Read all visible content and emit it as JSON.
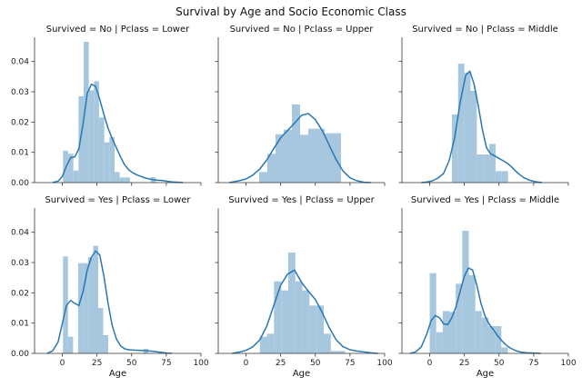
{
  "chart_data": {
    "type": "histogram",
    "title": "Survival by Age and Socio Economic Class",
    "xlabel": "Age",
    "ylabel": "",
    "xlim": [
      -20,
      100
    ],
    "ylim": [
      0,
      0.048
    ],
    "xticks": [
      0,
      25,
      50,
      75,
      100
    ],
    "yticks": [
      0.0,
      0.01,
      0.02,
      0.03,
      0.04
    ],
    "ytick_labels": [
      "0.00",
      "0.01",
      "0.02",
      "0.03",
      "0.04"
    ],
    "layout": {
      "rows": 2,
      "cols": 3,
      "sharex": true,
      "sharey": true,
      "grid": false
    },
    "colors": {
      "bar": "#a7c7df",
      "kde": "#2a77b2",
      "axis": "#333333"
    },
    "panels": [
      {
        "title": "Survived = No | Pclass = Lower",
        "bin_edges": [
          0.5,
          4.2,
          8.0,
          11.7,
          15.4,
          19.1,
          22.8,
          26.5,
          30.3,
          34.0,
          37.7,
          41.4,
          45.1,
          48.8,
          52.5,
          56.2,
          60.0,
          63.7,
          67.4,
          71.1,
          74.8
        ],
        "density": [
          0.0105,
          0.0095,
          0.004,
          0.0285,
          0.0465,
          0.0305,
          0.0335,
          0.0215,
          0.0133,
          0.015,
          0.0035,
          0.0017,
          0.0017,
          0.0,
          0.0,
          0.0,
          0.0,
          0.0018,
          0.0,
          0.0
        ],
        "kde": {
          "x": [
            -7,
            -3,
            0,
            3,
            6,
            9,
            12,
            15,
            18,
            21,
            24,
            27,
            30,
            33,
            36,
            39,
            42,
            45,
            48,
            51,
            54,
            57,
            60,
            63,
            66,
            69,
            72,
            76,
            80,
            84,
            87
          ],
          "y": [
            0.0,
            0.0005,
            0.002,
            0.0055,
            0.0082,
            0.0085,
            0.0112,
            0.0195,
            0.0295,
            0.0325,
            0.0318,
            0.0275,
            0.0225,
            0.018,
            0.0145,
            0.0115,
            0.0085,
            0.0058,
            0.0042,
            0.0032,
            0.0025,
            0.002,
            0.0015,
            0.0012,
            0.0009,
            0.0008,
            0.0007,
            0.0004,
            0.0002,
            0.0001,
            0.0
          ]
        }
      },
      {
        "title": "Survived = No | Pclass = Upper",
        "bin_edges": [
          9.5,
          15.4,
          21.3,
          27.2,
          33.1,
          39.0,
          44.9,
          50.8,
          56.7,
          62.6,
          68.5,
          74.4
        ],
        "density": [
          0.0035,
          0.0095,
          0.016,
          0.0175,
          0.0258,
          0.0158,
          0.0178,
          0.0178,
          0.0163,
          0.0163,
          0.0
        ],
        "kde": {
          "x": [
            -12,
            -5,
            0,
            5,
            10,
            15,
            20,
            25,
            30,
            35,
            40,
            45,
            50,
            55,
            60,
            65,
            70,
            75,
            80,
            85,
            90
          ],
          "y": [
            0.0,
            0.0006,
            0.0012,
            0.0025,
            0.0045,
            0.0075,
            0.0112,
            0.0148,
            0.0172,
            0.0196,
            0.0222,
            0.0228,
            0.0208,
            0.0172,
            0.0124,
            0.0076,
            0.0038,
            0.0016,
            0.0006,
            0.0001,
            0.0
          ]
        }
      },
      {
        "title": "Survived = No | Pclass = Middle",
        "bin_edges": [
          16.0,
          20.5,
          25.0,
          29.5,
          34.0,
          38.5,
          43.0,
          47.5,
          52.0,
          56.5,
          61.0,
          65.5,
          70.0
        ],
        "density": [
          0.0225,
          0.0393,
          0.0363,
          0.0303,
          0.0093,
          0.0093,
          0.0128,
          0.0038,
          0.0038,
          0.0,
          0.0,
          0.0
        ],
        "kde": {
          "x": [
            -6,
            -2,
            2,
            6,
            10,
            14,
            18,
            22,
            26,
            29,
            32,
            35,
            38,
            41,
            44,
            47,
            50,
            53,
            56,
            59,
            62,
            65,
            68,
            72,
            76,
            81
          ],
          "y": [
            0.0,
            0.0002,
            0.0006,
            0.0015,
            0.003,
            0.0072,
            0.0148,
            0.0265,
            0.0355,
            0.0368,
            0.0325,
            0.0255,
            0.0175,
            0.0115,
            0.0095,
            0.0088,
            0.008,
            0.0072,
            0.0064,
            0.0052,
            0.0038,
            0.0026,
            0.0016,
            0.0008,
            0.0003,
            0.0
          ]
        }
      },
      {
        "title": "Survived = Yes | Pclass = Lower",
        "bin_edges": [
          0.5,
          4.1,
          7.8,
          11.4,
          15.0,
          18.6,
          22.3,
          25.9,
          29.5,
          33.1,
          36.8,
          40.4,
          44.0,
          47.6,
          51.3,
          54.9,
          58.5,
          62.1,
          65.8,
          69.4,
          73.0
        ],
        "density": [
          0.032,
          0.0055,
          0.0,
          0.0298,
          0.0298,
          0.0318,
          0.0355,
          0.015,
          0.006,
          0.0,
          0.0,
          0.0,
          0.0,
          0.0,
          0.0,
          0.0,
          0.0015,
          0.0,
          0.0,
          0.0
        ],
        "kde": {
          "x": [
            -11,
            -7,
            -3,
            0,
            3,
            6,
            9,
            12,
            15,
            18,
            21,
            24,
            27,
            30,
            33,
            36,
            39,
            42,
            45,
            48,
            51,
            55,
            60,
            65,
            70,
            75,
            79
          ],
          "y": [
            0.0,
            0.0008,
            0.0038,
            0.0098,
            0.0158,
            0.0175,
            0.0165,
            0.0158,
            0.0205,
            0.0275,
            0.0318,
            0.0338,
            0.0325,
            0.0255,
            0.0165,
            0.0092,
            0.0048,
            0.0025,
            0.0015,
            0.0012,
            0.0011,
            0.001,
            0.0009,
            0.0007,
            0.0004,
            0.0001,
            0.0
          ]
        }
      },
      {
        "title": "Survived = Yes | Pclass = Upper",
        "bin_edges": [
          10.0,
          15.1,
          20.2,
          25.4,
          30.5,
          35.6,
          40.7,
          45.8,
          51.0,
          56.1,
          61.2,
          66.3,
          71.4,
          76.5
        ],
        "density": [
          0.0055,
          0.0065,
          0.0238,
          0.0208,
          0.0333,
          0.0238,
          0.0208,
          0.0158,
          0.0158,
          0.0065,
          0.0008,
          0.0008,
          0.0
        ],
        "kde": {
          "x": [
            -10,
            -5,
            0,
            5,
            10,
            15,
            20,
            25,
            30,
            35,
            40,
            45,
            50,
            55,
            60,
            65,
            70,
            75,
            80,
            85,
            90,
            95
          ],
          "y": [
            0.0,
            0.0004,
            0.001,
            0.0022,
            0.0045,
            0.009,
            0.0158,
            0.0225,
            0.0262,
            0.0275,
            0.0235,
            0.0205,
            0.0178,
            0.0135,
            0.0085,
            0.0045,
            0.0022,
            0.0012,
            0.0008,
            0.0005,
            0.0002,
            0.0
          ]
        }
      },
      {
        "title": "Survived = Yes | Pclass = Middle",
        "bin_edges": [
          0.0,
          4.7,
          9.4,
          14.1,
          18.8,
          23.5,
          28.2,
          32.9,
          37.6,
          42.3,
          47.0,
          51.7,
          56.4,
          61.1
        ],
        "density": [
          0.0265,
          0.007,
          0.014,
          0.0137,
          0.023,
          0.0405,
          0.0258,
          0.014,
          0.0118,
          0.009,
          0.009,
          0.002,
          0.0
        ],
        "kde": {
          "x": [
            -14,
            -10,
            -6,
            -2,
            1,
            4,
            7,
            10,
            13,
            16,
            19,
            22,
            25,
            28,
            31,
            34,
            37,
            40,
            43,
            46,
            49,
            52,
            55,
            58,
            62,
            66,
            70,
            75,
            80
          ],
          "y": [
            0.0,
            0.0005,
            0.0022,
            0.0065,
            0.0108,
            0.0125,
            0.0118,
            0.0098,
            0.0095,
            0.0118,
            0.0155,
            0.0205,
            0.0255,
            0.0282,
            0.0275,
            0.0225,
            0.0165,
            0.0122,
            0.0096,
            0.0078,
            0.0058,
            0.0042,
            0.0028,
            0.0018,
            0.0009,
            0.0004,
            0.0002,
            0.0001,
            0.0
          ]
        }
      }
    ]
  }
}
